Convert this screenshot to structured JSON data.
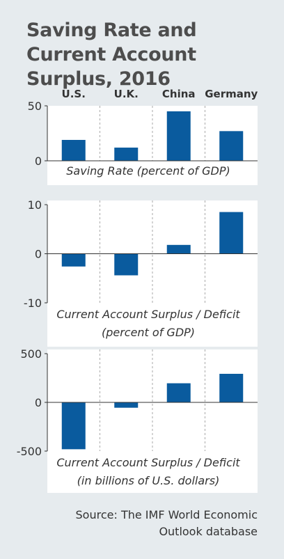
{
  "title": "Saving Rate and Current Account Surplus, 2016",
  "source": "Source: The IMF World Economic Outlook database",
  "colors": {
    "bar": "#0a5b9e",
    "panel": "#ffffff",
    "background": "#e6ebee"
  },
  "chart_data": {
    "type": "bar",
    "categories": [
      "U.S.",
      "U.K.",
      "China",
      "Germany"
    ],
    "panels": [
      {
        "title": [
          "Saving Rate (percent of GDP)"
        ],
        "ylim": [
          0,
          50
        ],
        "ticks": [
          50,
          0
        ],
        "tick_labels": [
          "50",
          "0"
        ],
        "values": [
          19,
          12,
          45,
          27
        ]
      },
      {
        "title": [
          "Current Account Surplus / Deficit",
          "(percent of GDP)"
        ],
        "ylim": [
          -10,
          10
        ],
        "ticks": [
          10,
          0,
          -10
        ],
        "tick_labels": [
          "10",
          "0",
          "-10"
        ],
        "values": [
          -2.6,
          -4.4,
          1.8,
          8.5
        ]
      },
      {
        "title": [
          "Current Account Surplus / Deficit",
          "(in billions of U.S. dollars)"
        ],
        "ylim": [
          -500,
          500
        ],
        "ticks": [
          500,
          0,
          -500
        ],
        "tick_labels": [
          "500",
          "0",
          "-500"
        ],
        "values": [
          -481,
          -55,
          196,
          293
        ]
      }
    ]
  }
}
